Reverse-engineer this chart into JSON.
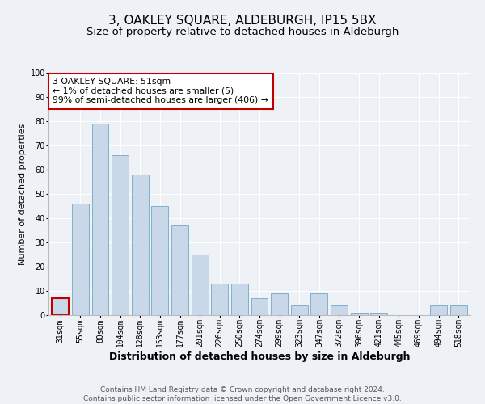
{
  "title": "3, OAKLEY SQUARE, ALDEBURGH, IP15 5BX",
  "subtitle": "Size of property relative to detached houses in Aldeburgh",
  "xlabel": "Distribution of detached houses by size in Aldeburgh",
  "ylabel": "Number of detached properties",
  "categories": [
    "31sqm",
    "55sqm",
    "80sqm",
    "104sqm",
    "128sqm",
    "153sqm",
    "177sqm",
    "201sqm",
    "226sqm",
    "250sqm",
    "274sqm",
    "299sqm",
    "323sqm",
    "347sqm",
    "372sqm",
    "396sqm",
    "421sqm",
    "445sqm",
    "469sqm",
    "494sqm",
    "518sqm"
  ],
  "values": [
    7,
    46,
    79,
    66,
    58,
    45,
    37,
    25,
    13,
    13,
    7,
    9,
    4,
    9,
    4,
    1,
    1,
    0,
    0,
    4,
    4
  ],
  "bar_color": "#c8d8e8",
  "bar_edge_color": "#7fb0cc",
  "highlight_bar_index": 0,
  "highlight_bar_edge_color": "#c00000",
  "annotation_text": "3 OAKLEY SQUARE: 51sqm\n← 1% of detached houses are smaller (5)\n99% of semi-detached houses are larger (406) →",
  "annotation_box_edge_color": "#c00000",
  "ylim": [
    0,
    100
  ],
  "footer_text": "Contains HM Land Registry data © Crown copyright and database right 2024.\nContains public sector information licensed under the Open Government Licence v3.0.",
  "background_color": "#eef2f7",
  "plot_bg_color": "#eef2f7",
  "grid_color": "#ffffff",
  "title_fontsize": 11,
  "subtitle_fontsize": 9.5,
  "ylabel_fontsize": 8,
  "xlabel_fontsize": 9,
  "tick_fontsize": 7,
  "footer_fontsize": 6.5
}
